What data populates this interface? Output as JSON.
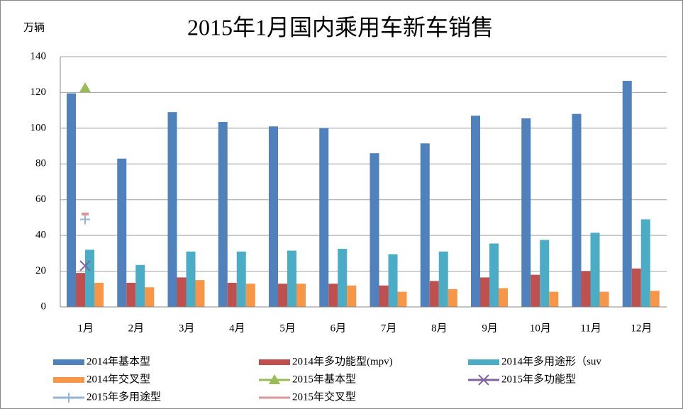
{
  "chart_data": {
    "type": "bar",
    "title": "2015年1月国内乘用车新车销售",
    "y_label": "万辆",
    "categories": [
      "1月",
      "2月",
      "3月",
      "4月",
      "5月",
      "6月",
      "7月",
      "8月",
      "9月",
      "10月",
      "11月",
      "12月"
    ],
    "ylim": [
      0,
      140
    ],
    "yticks": [
      0,
      20,
      40,
      60,
      80,
      100,
      120,
      140
    ],
    "grid": true,
    "series": [
      {
        "name": "2014年基本型",
        "color": "#4f81bd",
        "values": [
          119.5,
          83,
          109,
          103.5,
          101,
          100,
          86,
          91.5,
          107,
          105.5,
          108,
          126.5
        ]
      },
      {
        "name": "2014年多功能型(mpv)",
        "color": "#c0504d",
        "values": [
          19,
          13.5,
          16.5,
          13.5,
          13,
          13,
          12,
          14.5,
          16.5,
          18,
          20,
          21.5
        ]
      },
      {
        "name": "2014年多用途形（suv",
        "color": "#4bacc6",
        "values": [
          32,
          23.5,
          31,
          31,
          31.5,
          32.5,
          29.5,
          31,
          35.5,
          37.5,
          41.5,
          49
        ]
      },
      {
        "name": "2014年交叉型",
        "color": "#f79646",
        "values": [
          13.5,
          11,
          15,
          13,
          13,
          12,
          8.5,
          10,
          10.5,
          8.5,
          8.5,
          9
        ]
      },
      {
        "name": "2015年基本型",
        "color": "#9bbb59",
        "marker": "triangle",
        "values": [
          122.5,
          null,
          null,
          null,
          null,
          null,
          null,
          null,
          null,
          null,
          null,
          null
        ]
      },
      {
        "name": "2015年多功能型",
        "color": "#8064a2",
        "marker": "x",
        "values": [
          23,
          null,
          null,
          null,
          null,
          null,
          null,
          null,
          null,
          null,
          null,
          null
        ]
      },
      {
        "name": "2015年多用途型",
        "color": "#95b3d7",
        "marker": "plus",
        "values": [
          49,
          null,
          null,
          null,
          null,
          null,
          null,
          null,
          null,
          null,
          null,
          null
        ]
      },
      {
        "name": "2015年交叉型",
        "color": "#d99694",
        "marker": "dash",
        "values": [
          52,
          null,
          null,
          null,
          null,
          null,
          null,
          null,
          null,
          null,
          null,
          null
        ]
      }
    ]
  }
}
